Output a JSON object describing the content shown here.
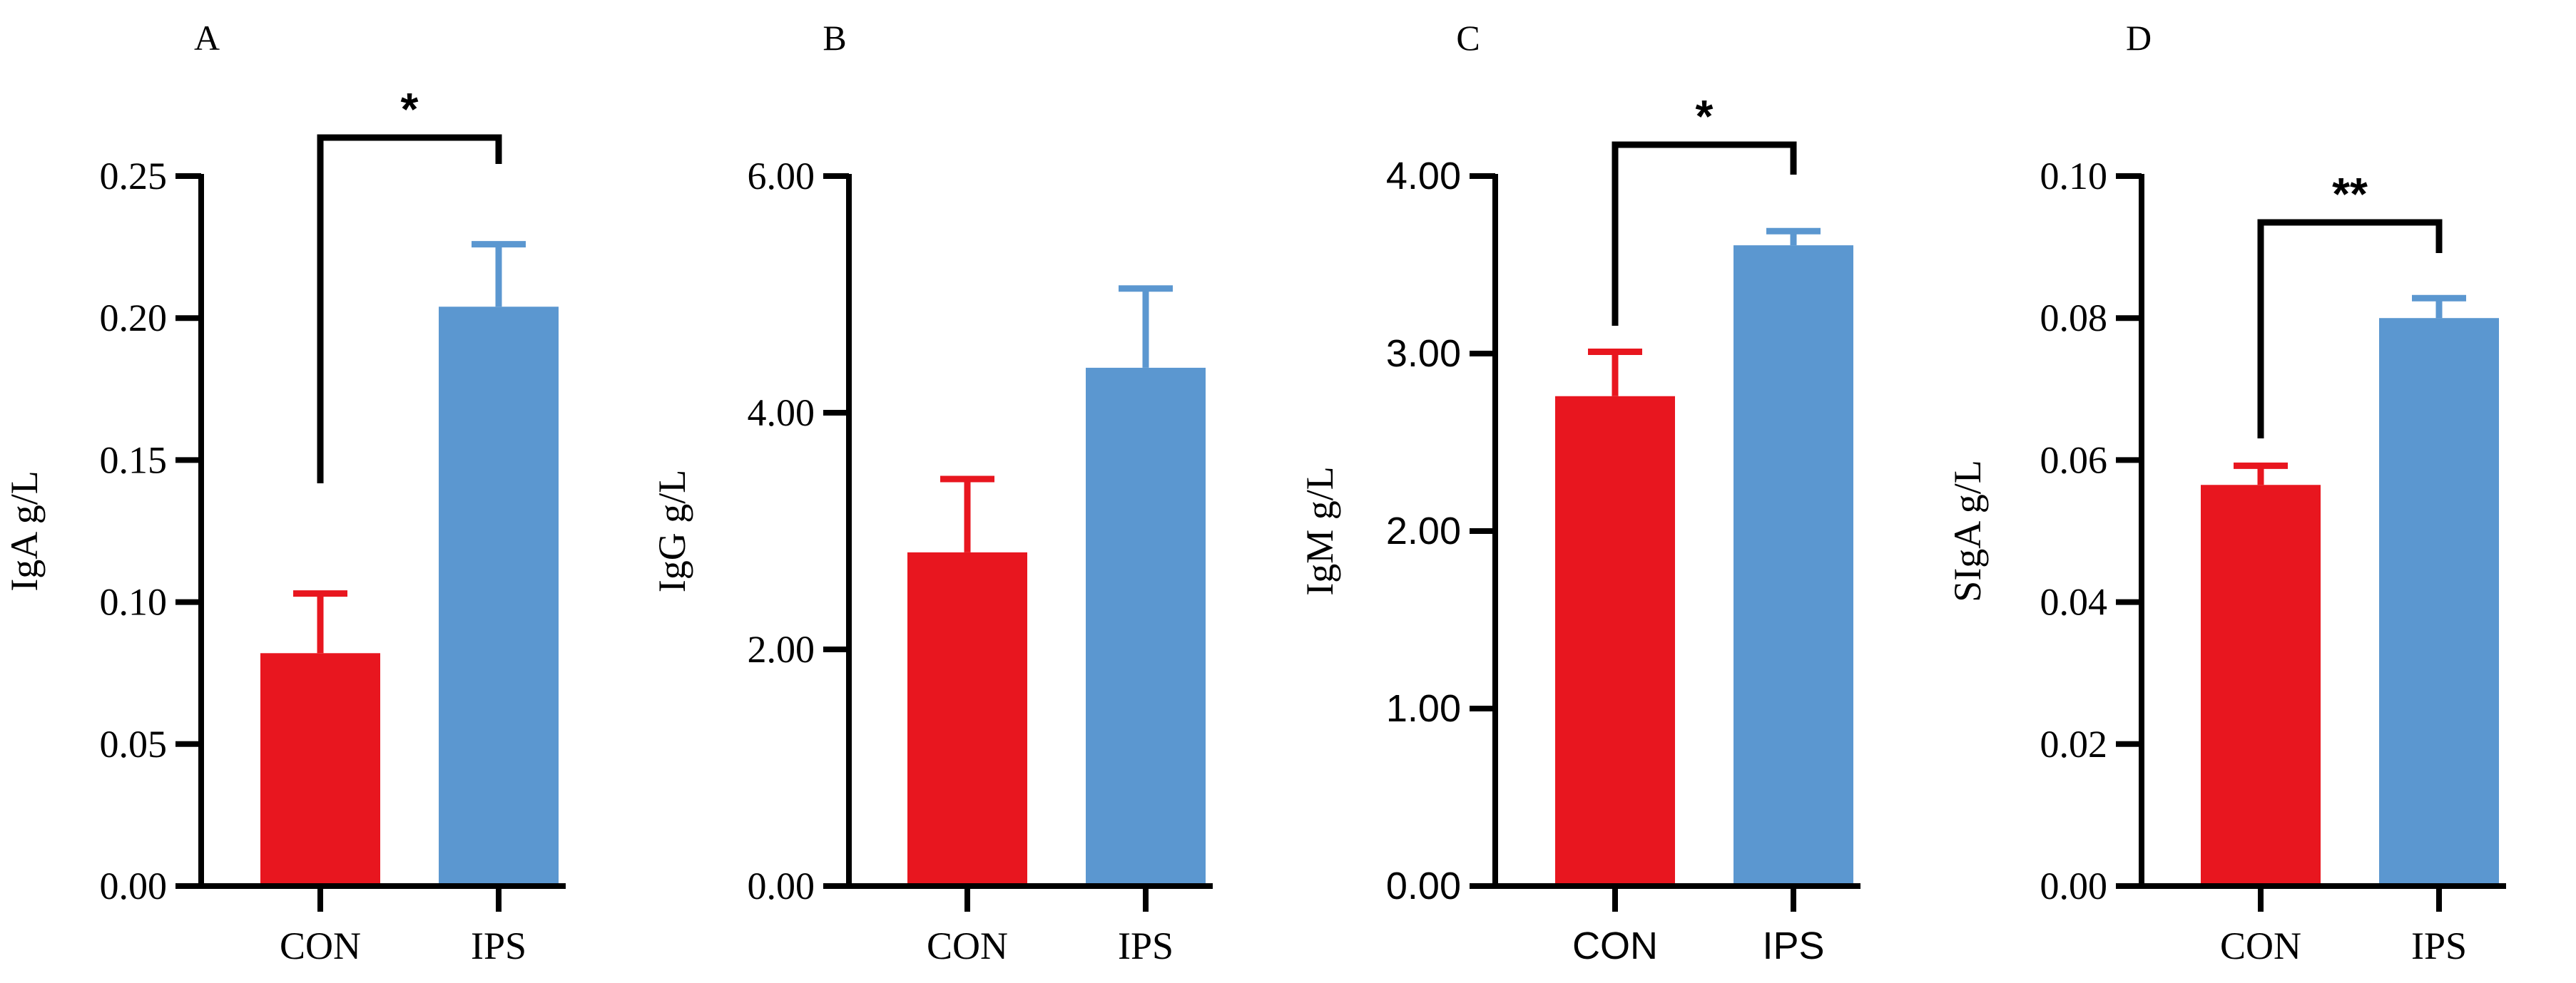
{
  "colors": {
    "con": "#e8161f",
    "ips": "#5b97d0",
    "axis": "#000000"
  },
  "chart_data": [
    {
      "panel_label": "A",
      "type": "bar",
      "categories": [
        "CON",
        "IPS"
      ],
      "values": [
        0.082,
        0.204
      ],
      "errors": [
        0.021,
        0.022
      ],
      "ylabel": "IgA g/L",
      "ylim": [
        0,
        0.25
      ],
      "yticks": [
        "0.00",
        "0.05",
        "0.10",
        "0.15",
        "0.20",
        "0.25"
      ],
      "significance": "*",
      "tick_font": "serif"
    },
    {
      "panel_label": "B",
      "type": "bar",
      "categories": [
        "CON",
        "IPS"
      ],
      "values": [
        2.82,
        4.38
      ],
      "errors": [
        0.62,
        0.67
      ],
      "ylabel": "IgG g/L",
      "ylim": [
        0,
        6
      ],
      "yticks": [
        "0.00",
        "2.00",
        "4.00",
        "6.00"
      ],
      "significance": "",
      "tick_font": "serif"
    },
    {
      "panel_label": "C",
      "type": "bar",
      "categories": [
        "CON",
        "IPS"
      ],
      "values": [
        2.76,
        3.61
      ],
      "errors": [
        0.25,
        0.08
      ],
      "ylabel": "IgM g/L",
      "ylim": [
        0,
        4
      ],
      "yticks": [
        "0.00",
        "1.00",
        "2.00",
        "3.00",
        "4.00"
      ],
      "significance": "*",
      "tick_font": "sans"
    },
    {
      "panel_label": "D",
      "type": "bar",
      "categories": [
        "CON",
        "IPS"
      ],
      "values": [
        0.0565,
        0.08
      ],
      "errors": [
        0.0027,
        0.0028
      ],
      "ylabel": "SIgA g/L",
      "ylim": [
        0,
        0.1
      ],
      "yticks": [
        "0.00",
        "0.02",
        "0.04",
        "0.06",
        "0.08",
        "0.10"
      ],
      "significance": "**",
      "tick_font": "serif"
    }
  ]
}
